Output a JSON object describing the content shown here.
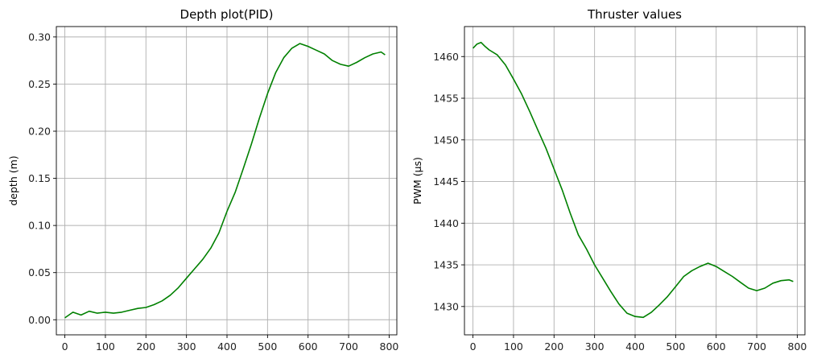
{
  "chart_data": [
    {
      "type": "line",
      "title": "Depth plot(PID)",
      "xlabel": "",
      "ylabel": "depth (m)",
      "xlim": [
        -21,
        819
      ],
      "ylim": [
        -0.016,
        0.311
      ],
      "xticks": [
        0,
        100,
        200,
        300,
        400,
        500,
        600,
        700,
        800
      ],
      "yticks": [
        0.0,
        0.05,
        0.1,
        0.15,
        0.2,
        0.25,
        0.3
      ],
      "xtick_labels": [
        "0",
        "100",
        "200",
        "300",
        "400",
        "500",
        "600",
        "700",
        "800"
      ],
      "ytick_labels": [
        "0.00",
        "0.05",
        "0.10",
        "0.15",
        "0.20",
        "0.25",
        "0.30"
      ],
      "grid": true,
      "color": "#008000",
      "x": [
        0,
        20,
        40,
        60,
        80,
        100,
        120,
        140,
        160,
        180,
        200,
        220,
        240,
        260,
        280,
        300,
        320,
        340,
        360,
        380,
        400,
        420,
        440,
        460,
        480,
        500,
        520,
        540,
        560,
        580,
        600,
        620,
        640,
        660,
        680,
        700,
        720,
        740,
        760,
        780,
        790
      ],
      "y": [
        0.002,
        0.008,
        0.005,
        0.009,
        0.007,
        0.008,
        0.007,
        0.008,
        0.01,
        0.012,
        0.013,
        0.016,
        0.02,
        0.026,
        0.034,
        0.044,
        0.054,
        0.064,
        0.076,
        0.092,
        0.115,
        0.135,
        0.16,
        0.186,
        0.214,
        0.24,
        0.262,
        0.278,
        0.288,
        0.293,
        0.29,
        0.286,
        0.282,
        0.275,
        0.271,
        0.269,
        0.273,
        0.278,
        0.282,
        0.284,
        0.281
      ]
    },
    {
      "type": "line",
      "title": "Thruster values",
      "xlabel": "",
      "ylabel": "PWM (µs)",
      "xlim": [
        -21,
        819
      ],
      "ylim": [
        1426.6,
        1463.6
      ],
      "xticks": [
        0,
        100,
        200,
        300,
        400,
        500,
        600,
        700,
        800
      ],
      "yticks": [
        1430,
        1435,
        1440,
        1445,
        1450,
        1455,
        1460
      ],
      "xtick_labels": [
        "0",
        "100",
        "200",
        "300",
        "400",
        "500",
        "600",
        "700",
        "800"
      ],
      "ytick_labels": [
        "1430",
        "1435",
        "1440",
        "1445",
        "1450",
        "1455",
        "1460"
      ],
      "grid": true,
      "color": "#008000",
      "x": [
        0,
        10,
        20,
        30,
        40,
        60,
        80,
        100,
        120,
        140,
        160,
        180,
        200,
        220,
        240,
        260,
        280,
        300,
        320,
        340,
        360,
        380,
        400,
        420,
        440,
        460,
        480,
        500,
        520,
        540,
        560,
        580,
        600,
        620,
        640,
        660,
        680,
        700,
        720,
        740,
        760,
        780,
        790
      ],
      "y": [
        1461.0,
        1461.5,
        1461.7,
        1461.2,
        1460.8,
        1460.2,
        1459.0,
        1457.3,
        1455.5,
        1453.4,
        1451.2,
        1449.0,
        1446.5,
        1444.0,
        1441.2,
        1438.6,
        1436.9,
        1435.0,
        1433.4,
        1431.8,
        1430.3,
        1429.2,
        1428.8,
        1428.7,
        1429.3,
        1430.2,
        1431.2,
        1432.4,
        1433.6,
        1434.3,
        1434.8,
        1435.2,
        1434.8,
        1434.2,
        1433.6,
        1432.9,
        1432.2,
        1431.9,
        1432.2,
        1432.8,
        1433.1,
        1433.2,
        1433.0
      ]
    }
  ]
}
